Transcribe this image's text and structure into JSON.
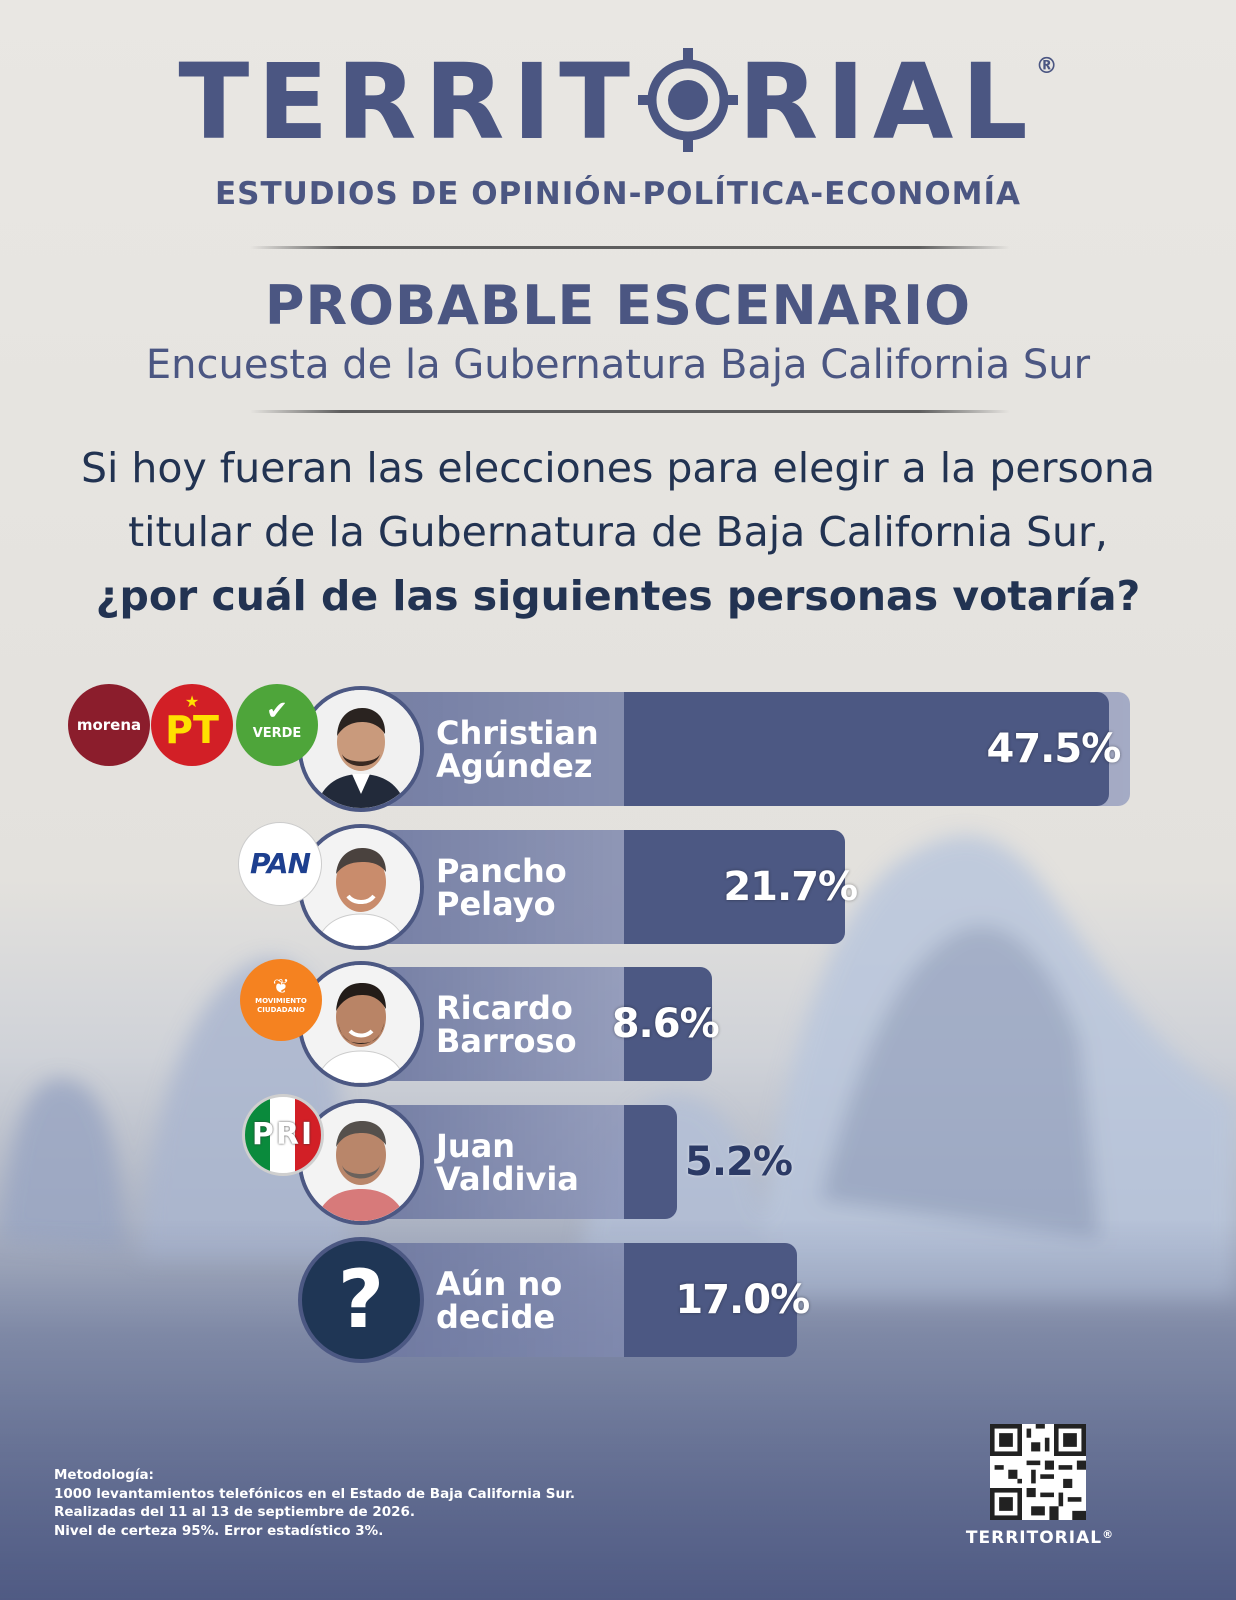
{
  "header": {
    "brand": "TERRITORIAL",
    "brand_left": "TERRIT",
    "brand_right": "RIAL",
    "registered": "®",
    "tagline": "ESTUDIOS DE OPINIÓN-POLÍTICA-ECONOMÍA"
  },
  "title": "PROBABLE ESCENARIO",
  "subtitle": "Encuesta de la Gubernatura Baja California Sur",
  "question": {
    "line1": "Si hoy fueran las elecciones para elegir a la persona",
    "line2": "titular de la Gubernatura de Baja California Sur,",
    "line3": "¿por cuál de las siguientes personas votaría?"
  },
  "chart_data": {
    "type": "bar",
    "orientation": "horizontal",
    "categories": [
      "Christian Agúndez",
      "Pancho Pelayo",
      "Ricardo Barroso",
      "Juan Valdivia",
      "Aún no decide"
    ],
    "values": [
      47.5,
      21.7,
      8.6,
      5.2,
      17.0
    ],
    "value_labels": [
      "47.5%",
      "21.7%",
      "8.6%",
      "5.2%",
      "17.0%"
    ],
    "unit": "%",
    "xlim": [
      0,
      50
    ]
  },
  "candidates": [
    {
      "first": "Christian",
      "last": "Agúndez",
      "parties": [
        "morena",
        "PT",
        "VERDE"
      ]
    },
    {
      "first": "Pancho",
      "last": "Pelayo",
      "parties": [
        "PAN"
      ]
    },
    {
      "first": "Ricardo",
      "last": "Barroso",
      "parties": [
        "MOVIMIENTO CIUDADANO"
      ]
    },
    {
      "first": "Juan",
      "last": "Valdivia",
      "parties": [
        "PRI"
      ]
    },
    {
      "first": "Aún no",
      "last": "decide",
      "parties": []
    }
  ],
  "undecided_symbol": "?",
  "party_logos": {
    "morena": "morena",
    "pt": "PT",
    "verde": "VERDE",
    "pan": "PAN",
    "mc_line1": "MOVIMIENTO",
    "mc_line2": "CIUDADANO",
    "pri": "PRI"
  },
  "methodology": {
    "heading": "Metodología:",
    "line1": "1000 levantamientos telefónicos en el Estado de Baja California Sur.",
    "line2": "Realizadas del 11 al 13 de septiembre de 2026.",
    "line3": "Nivel de certeza 95%. Error estadístico 3%."
  },
  "footer": {
    "brand": "TERRITORIAL",
    "registered": "®"
  },
  "colors": {
    "brand": "#4b5682",
    "bar_fill": "#4c5883",
    "morena": "#8b1d2c",
    "pt": "#d21f26",
    "verde": "#4ea53a",
    "mc": "#f58220",
    "pri_green": "#0a8a3c",
    "pri_red": "#d21f26",
    "pan_blue": "#1d3f8f"
  }
}
